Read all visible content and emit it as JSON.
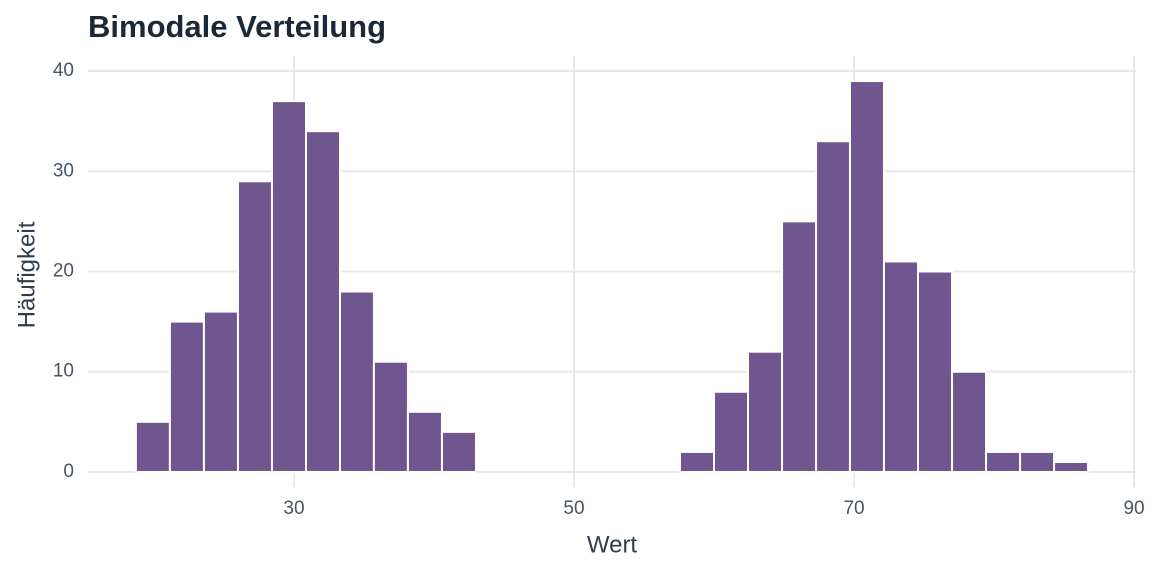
{
  "chart_data": {
    "type": "histogram",
    "title": "Bimodale Verteilung",
    "x_label": "Wert",
    "y_label": "Häufigkeit",
    "bins": [
      18.71,
      21.14,
      23.57,
      26.0,
      28.43,
      30.86,
      33.29,
      35.71,
      38.14,
      40.57,
      43.0,
      45.43,
      47.86,
      50.29,
      52.71,
      55.14,
      57.57,
      60.0,
      62.43,
      64.86,
      67.29,
      69.71,
      72.14,
      74.57,
      77.0,
      79.43,
      81.86,
      84.29,
      86.71
    ],
    "values": [
      5,
      15,
      16,
      29,
      37,
      34,
      18,
      11,
      6,
      4,
      0,
      0,
      0,
      0,
      0,
      0,
      2,
      8,
      12,
      25,
      33,
      39,
      21,
      20,
      10,
      2,
      2,
      1
    ],
    "color": "#6f568f",
    "xlim": [
      15.29,
      90.14
    ],
    "xticks": [
      30,
      50,
      70,
      90
    ],
    "ylim": [
      -1.5,
      41.5
    ],
    "yticks": [
      0,
      10,
      20,
      30,
      40
    ],
    "grid": true
  }
}
